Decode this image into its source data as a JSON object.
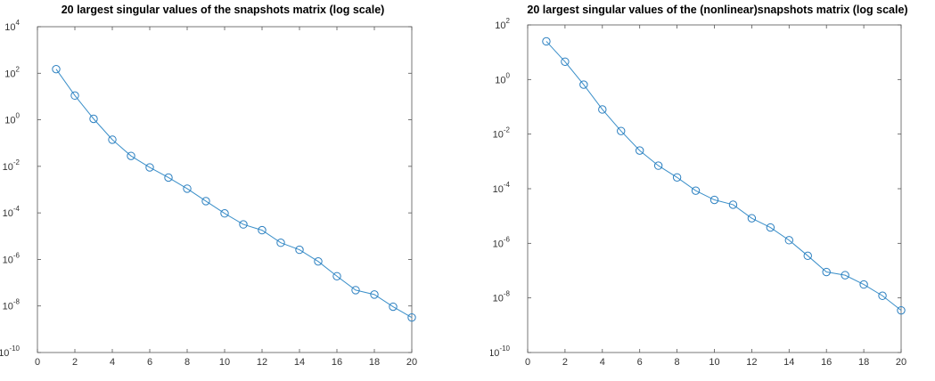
{
  "chart_data": [
    {
      "type": "line",
      "title": "20 largest singular values of the snapshots matrix (log scale)",
      "xlabel": "",
      "ylabel": "",
      "xlim": [
        0,
        20
      ],
      "ylim": [
        1e-10,
        10000.0
      ],
      "yscale": "log",
      "grid": false,
      "x_ticks": [
        0,
        2,
        4,
        6,
        8,
        10,
        12,
        14,
        16,
        18,
        20
      ],
      "y_tick_exponents": [
        4,
        2,
        0,
        -2,
        -4,
        -6,
        -8,
        -10
      ],
      "marker": "circle",
      "color": "#2b7fc0",
      "series": [
        {
          "x": [
            1,
            2,
            3,
            4,
            5,
            6,
            7,
            8,
            9,
            10,
            11,
            12,
            13,
            14,
            15,
            16,
            17,
            18,
            19,
            20
          ],
          "values": [
            150,
            11,
            1.1,
            0.14,
            0.028,
            0.009,
            0.0033,
            0.0011,
            0.00032,
            9.5e-05,
            3.2e-05,
            1.8e-05,
            5.2e-06,
            2.6e-06,
            8.2e-07,
            1.9e-07,
            4.8e-08,
            3.1e-08,
            9.3e-09,
            3.2e-09
          ]
        }
      ]
    },
    {
      "type": "line",
      "title": "20 largest singular values of the (nonlinear)snapshots matrix (log scale)",
      "xlabel": "",
      "ylabel": "",
      "xlim": [
        0,
        20
      ],
      "ylim": [
        1e-10,
        100.0
      ],
      "yscale": "log",
      "grid": false,
      "x_ticks": [
        0,
        2,
        4,
        6,
        8,
        10,
        12,
        14,
        16,
        18,
        20
      ],
      "y_tick_exponents": [
        2,
        0,
        -2,
        -4,
        -6,
        -8,
        -10
      ],
      "marker": "circle",
      "color": "#2b7fc0",
      "series": [
        {
          "x": [
            1,
            2,
            3,
            4,
            5,
            6,
            7,
            8,
            9,
            10,
            11,
            12,
            13,
            14,
            15,
            16,
            17,
            18,
            19,
            20
          ],
          "values": [
            25,
            4.5,
            0.65,
            0.08,
            0.013,
            0.0025,
            0.0007,
            0.00026,
            8.5e-05,
            3.9e-05,
            2.6e-05,
            8.3e-06,
            3.8e-06,
            1.3e-06,
            3.5e-07,
            8.9e-08,
            6.8e-08,
            3.1e-08,
            1.2e-08,
            3.5e-09
          ]
        }
      ]
    }
  ]
}
